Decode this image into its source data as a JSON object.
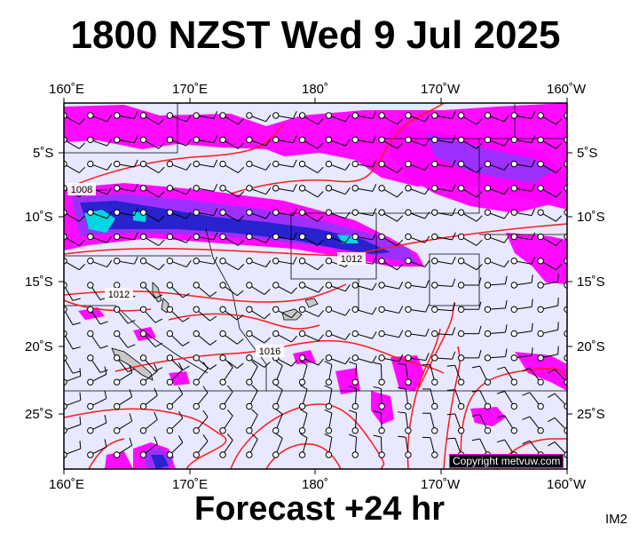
{
  "title": "1800 NZST Wed 9 Jul 2025",
  "footer": "Forecast +24 hr",
  "image_code": "IM2",
  "copyright": "Copyright metvuw.com",
  "longitude_labels": [
    "160˚E",
    "170˚E",
    "180˚",
    "170˚W",
    "160˚W"
  ],
  "latitude_labels": [
    "5˚S",
    "10˚S",
    "15˚S",
    "20˚S",
    "25˚S"
  ],
  "isobar_labels": [
    "1008",
    "1012",
    "1012",
    "1016"
  ],
  "colors": {
    "background": "#e8e8ff",
    "rain_light": "#ff00ff",
    "rain_medium": "#9933ff",
    "rain_heavy": "#2222cc",
    "rain_extreme": "#00e0e0",
    "isobar": "#ff0000",
    "land": "#c8c8c8"
  }
}
